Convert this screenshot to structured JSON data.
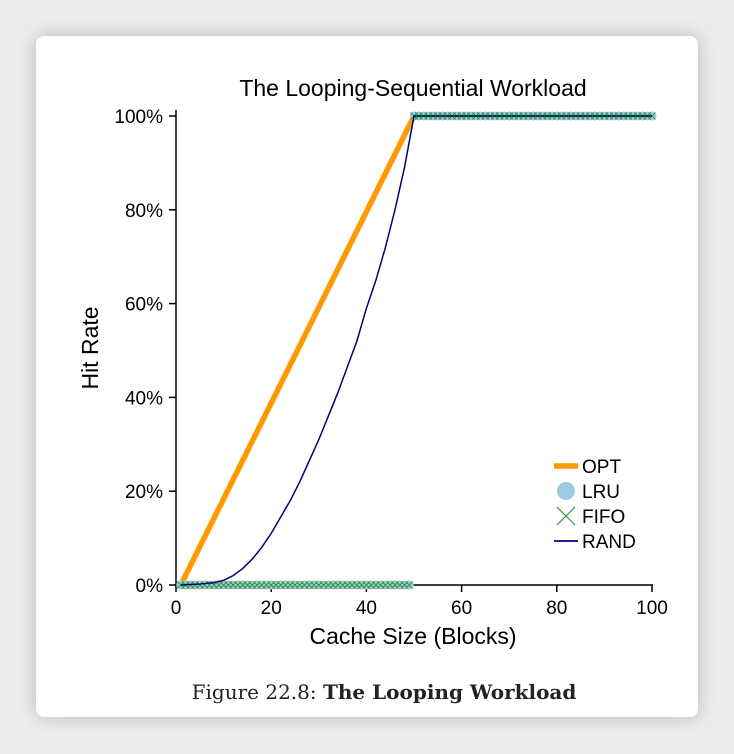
{
  "caption": {
    "prefix": "Figure 22.8:",
    "title": "The Looping Workload"
  },
  "chart_data": {
    "type": "line",
    "title": "The Looping-Sequential Workload",
    "xlabel": "Cache Size (Blocks)",
    "ylabel": "Hit Rate",
    "xlim": [
      0,
      100
    ],
    "ylim": [
      0,
      100
    ],
    "xticks": [
      0,
      20,
      40,
      60,
      80,
      100
    ],
    "yticks": [
      0,
      20,
      40,
      60,
      80,
      100
    ],
    "ytick_labels": [
      "0%",
      "20%",
      "40%",
      "60%",
      "80%",
      "100%"
    ],
    "grid": false,
    "legend_position": "bottom-right",
    "colors": {
      "OPT": "#ff9900",
      "LRU": "#9ec9e2",
      "FIFO": "#339933",
      "RAND": "#00007a"
    },
    "series": [
      {
        "name": "OPT",
        "style": "thick-line",
        "x": [
          1,
          50,
          100
        ],
        "y": [
          0,
          100,
          100
        ]
      },
      {
        "name": "LRU",
        "style": "circle-markers",
        "x_ranges": [
          [
            1,
            49
          ],
          [
            50,
            100
          ]
        ],
        "y_values": [
          0,
          100
        ]
      },
      {
        "name": "FIFO",
        "style": "x-markers",
        "x_ranges": [
          [
            1,
            49
          ],
          [
            50,
            100
          ]
        ],
        "y_values": [
          0,
          100
        ]
      },
      {
        "name": "RAND",
        "style": "thin-line",
        "x": [
          1,
          5,
          8,
          10,
          12,
          14,
          16,
          18,
          20,
          22,
          24,
          26,
          28,
          30,
          32,
          34,
          36,
          38,
          40,
          42,
          44,
          46,
          48,
          50,
          60,
          70,
          80,
          90,
          100
        ],
        "y": [
          0,
          0.2,
          0.5,
          1,
          2,
          3.5,
          5.5,
          8,
          11,
          14.5,
          18,
          22,
          26.5,
          31,
          36,
          41,
          46.5,
          52,
          59,
          65,
          72,
          80,
          89,
          100,
          100,
          100,
          100,
          100,
          100
        ]
      }
    ]
  }
}
